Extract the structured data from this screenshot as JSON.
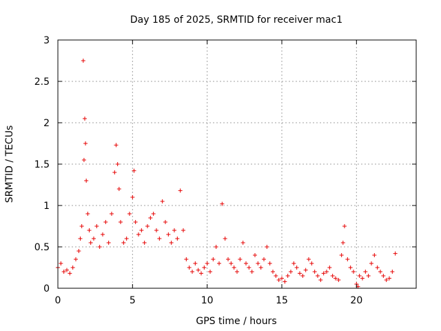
{
  "chart_data": {
    "type": "scatter",
    "title": "Day 185 of 2025, SRMTID for receiver mac1",
    "xlabel": "GPS time / hours",
    "ylabel": "SRMTID / TECUs",
    "xlim": [
      0,
      24
    ],
    "ylim": [
      0,
      3
    ],
    "xticks": [
      0,
      5,
      10,
      15,
      20
    ],
    "yticks": [
      0,
      0.5,
      1,
      1.5,
      2,
      2.5,
      3
    ],
    "xtick_labels": [
      "0",
      "5",
      "10",
      "15",
      "20"
    ],
    "ytick_labels": [
      "0",
      "0.5",
      "1",
      "1.5",
      "2",
      "2.5",
      "3"
    ],
    "grid": true,
    "marker": "+",
    "color": "#e60000",
    "series": [
      {
        "name": "mac1",
        "x": [
          0.0,
          0.2,
          0.4,
          0.6,
          0.8,
          1.0,
          1.2,
          1.4,
          1.5,
          1.6,
          1.7,
          1.75,
          1.8,
          1.85,
          1.9,
          2.0,
          2.1,
          2.2,
          2.4,
          2.6,
          2.8,
          3.0,
          3.2,
          3.4,
          3.6,
          3.8,
          3.9,
          4.0,
          4.1,
          4.2,
          4.4,
          4.6,
          4.8,
          5.0,
          5.1,
          5.2,
          5.4,
          5.6,
          5.8,
          6.0,
          6.2,
          6.4,
          6.6,
          6.8,
          7.0,
          7.2,
          7.4,
          7.6,
          7.8,
          8.0,
          8.2,
          8.4,
          8.6,
          8.8,
          9.0,
          9.2,
          9.4,
          9.6,
          9.8,
          10.0,
          10.2,
          10.4,
          10.6,
          10.8,
          11.0,
          11.2,
          11.4,
          11.6,
          11.8,
          12.0,
          12.2,
          12.4,
          12.6,
          12.8,
          13.0,
          13.2,
          13.4,
          13.6,
          13.8,
          14.0,
          14.2,
          14.4,
          14.6,
          14.8,
          15.0,
          15.2,
          15.4,
          15.6,
          15.8,
          16.0,
          16.2,
          16.4,
          16.6,
          16.8,
          17.0,
          17.2,
          17.4,
          17.6,
          17.8,
          18.0,
          18.2,
          18.4,
          18.6,
          18.8,
          19.0,
          19.1,
          19.2,
          19.4,
          19.6,
          19.8,
          20.0,
          20.1,
          20.2,
          20.4,
          20.6,
          20.8,
          21.0,
          21.2,
          21.4,
          21.6,
          21.8,
          22.0,
          22.2,
          22.4,
          22.6
        ],
        "y": [
          0.25,
          0.3,
          0.2,
          0.22,
          0.18,
          0.25,
          0.35,
          0.45,
          0.6,
          0.75,
          2.75,
          1.55,
          2.05,
          1.75,
          1.3,
          0.9,
          0.7,
          0.55,
          0.6,
          0.75,
          0.5,
          0.65,
          0.8,
          0.55,
          0.9,
          1.4,
          1.73,
          1.5,
          1.2,
          0.8,
          0.55,
          0.6,
          0.9,
          1.1,
          1.42,
          0.8,
          0.65,
          0.7,
          0.55,
          0.75,
          0.85,
          0.9,
          0.7,
          0.6,
          1.05,
          0.8,
          0.65,
          0.55,
          0.7,
          0.6,
          1.18,
          0.7,
          0.35,
          0.25,
          0.2,
          0.3,
          0.22,
          0.18,
          0.25,
          0.3,
          0.2,
          0.35,
          0.5,
          0.3,
          1.02,
          0.6,
          0.35,
          0.3,
          0.25,
          0.2,
          0.35,
          0.55,
          0.3,
          0.25,
          0.2,
          0.4,
          0.3,
          0.25,
          0.35,
          0.5,
          0.3,
          0.2,
          0.15,
          0.1,
          0.12,
          0.08,
          0.15,
          0.2,
          0.3,
          0.25,
          0.18,
          0.15,
          0.22,
          0.35,
          0.3,
          0.2,
          0.15,
          0.1,
          0.18,
          0.2,
          0.25,
          0.15,
          0.12,
          0.1,
          0.4,
          0.55,
          0.75,
          0.35,
          0.25,
          0.2,
          0.05,
          0.02,
          0.15,
          0.12,
          0.2,
          0.15,
          0.3,
          0.4,
          0.25,
          0.2,
          0.15,
          0.1,
          0.12,
          0.2,
          0.42
        ]
      }
    ]
  }
}
